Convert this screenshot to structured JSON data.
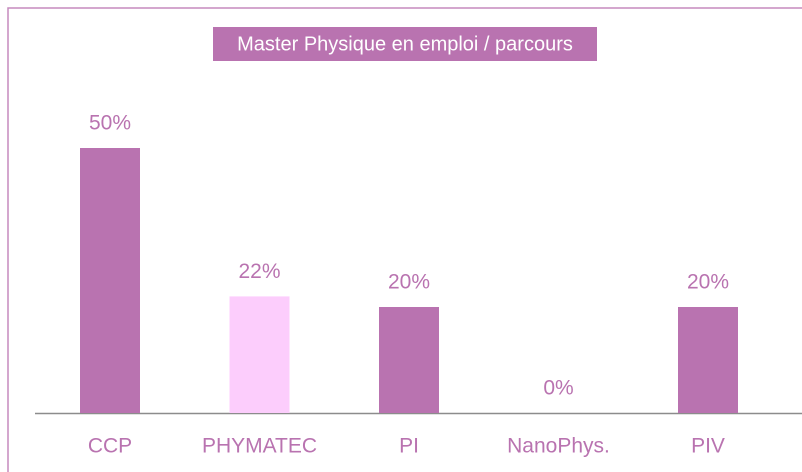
{
  "chart_data": {
    "type": "bar",
    "title": "Master Physique en emploi / parcours",
    "categories": [
      "CCP",
      "PHYMATEC",
      "PI",
      "NanoPhys.",
      "PIV"
    ],
    "values": [
      50,
      22,
      20,
      0,
      20
    ],
    "value_labels": [
      "50%",
      "22%",
      "20%",
      "0%",
      "20%"
    ],
    "colors": [
      "#b973b0",
      "#fccdfc",
      "#b973b0",
      "#b973b0",
      "#b973b0"
    ]
  }
}
